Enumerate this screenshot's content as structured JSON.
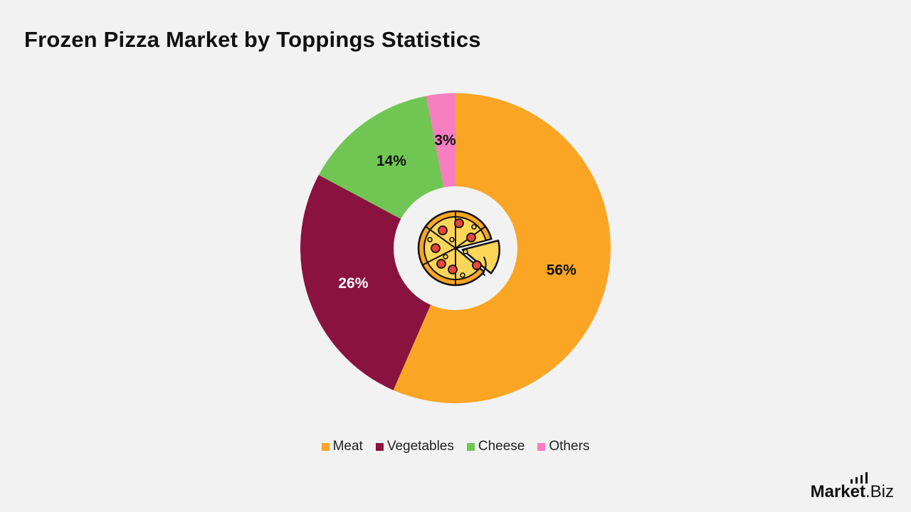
{
  "chart_data": {
    "type": "pie",
    "title": "Frozen Pizza Market by Toppings Statistics",
    "categories": [
      "Meat",
      "Vegetables",
      "Cheese",
      "Others"
    ],
    "values": [
      56,
      26,
      14,
      3
    ],
    "labels": [
      "56%",
      "26%",
      "14%",
      "3%"
    ],
    "colors": [
      "#fba524",
      "#8a123f",
      "#70c653",
      "#f77ec0"
    ],
    "label_colors": [
      "#111111",
      "#ffffff",
      "#111111",
      "#111111"
    ],
    "donut": true,
    "center_icon": "pizza-icon",
    "legend_position": "bottom"
  },
  "brand": {
    "main": "Market",
    "sub": ".Biz",
    "icon": "bar-chart-icon"
  }
}
